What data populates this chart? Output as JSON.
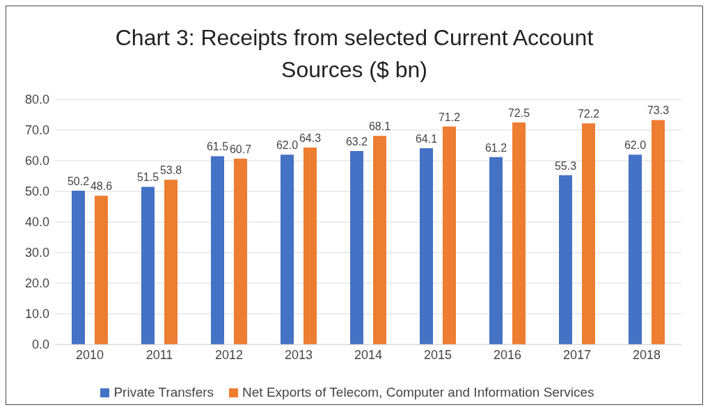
{
  "chart_data": {
    "type": "bar",
    "title": "Chart 3: Receipts from selected Current Account Sources ($ bn)",
    "categories": [
      "2010",
      "2011",
      "2012",
      "2013",
      "2014",
      "2015",
      "2016",
      "2017",
      "2018"
    ],
    "series": [
      {
        "name": "Private Transfers",
        "color": "#4472c4",
        "values": [
          50.2,
          51.5,
          61.5,
          62.0,
          63.2,
          64.1,
          61.2,
          55.3,
          62.0
        ],
        "value_labels": [
          "50.2",
          "51.5",
          "61.5",
          "62.0",
          "63.2",
          "64.1",
          "61.2",
          "55.3",
          "62.0"
        ]
      },
      {
        "name": "Net Exports of Telecom, Computer and Information Services",
        "color": "#ed7d31",
        "values": [
          48.6,
          53.8,
          60.7,
          64.3,
          68.1,
          71.2,
          72.5,
          72.2,
          73.3
        ],
        "value_labels": [
          "48.6",
          "53.8",
          "60.7",
          "64.3",
          "68.1",
          "71.2",
          "72.5",
          "72.2",
          "73.3"
        ]
      }
    ],
    "ylim": [
      0,
      80
    ],
    "yticks": [
      {
        "value": 0,
        "label": "0.0"
      },
      {
        "value": 10,
        "label": "10.0"
      },
      {
        "value": 20,
        "label": "20.0"
      },
      {
        "value": 30,
        "label": "30.0"
      },
      {
        "value": 40,
        "label": "40.0"
      },
      {
        "value": 50,
        "label": "50.0"
      },
      {
        "value": 60,
        "label": "60.0"
      },
      {
        "value": 70,
        "label": "70.0"
      },
      {
        "value": 80,
        "label": "80.0"
      }
    ],
    "grid": "y",
    "legend": "bottom"
  }
}
